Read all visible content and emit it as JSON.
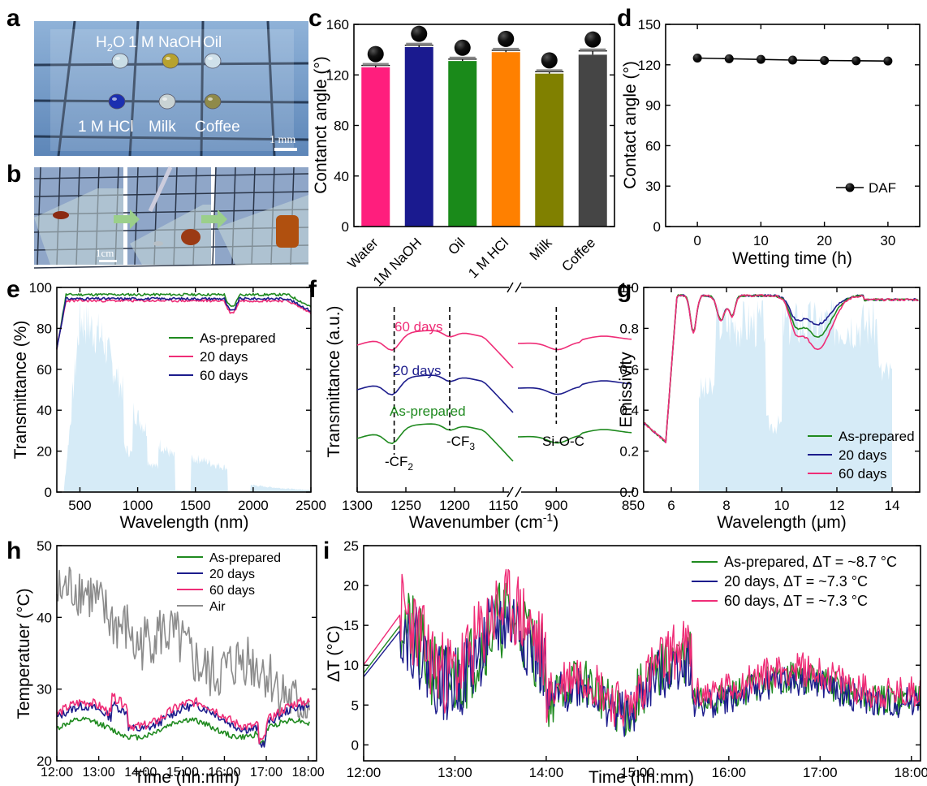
{
  "panel_labels": [
    "a",
    "b",
    "c",
    "d",
    "e",
    "f",
    "g",
    "h",
    "i"
  ],
  "photo_a": {
    "labels": [
      {
        "k": "H",
        "sub": "2",
        "rest": "O"
      },
      {
        "k": "1 M NaOH"
      },
      {
        "k": "Oil"
      },
      {
        "k": "1 M HCl"
      },
      {
        "k": "Milk"
      },
      {
        "k": "Coffee"
      }
    ],
    "drop_colors": [
      "#c9dde6",
      "#b7a22e",
      "#cfe0ea",
      "#1b2fb0",
      "#c9d3d4",
      "#8f8a4a"
    ],
    "scale": "1 mm"
  },
  "photo_b": {
    "scale": "1cm"
  },
  "colors": {
    "green": "#1f8a1f",
    "navy": "#1c1c8c",
    "pink": "#ef2d77",
    "gray": "#8c8c8c",
    "solar": "#d6ebf7"
  },
  "chart_data": [
    {
      "panel": "c",
      "type": "bar",
      "ylabel": "Contanct angle (°)",
      "ylim": [
        0,
        160
      ],
      "categories": [
        "Water",
        "1M NaOH",
        "Oil",
        "1 M HCl",
        "Milk",
        "Coffee"
      ],
      "values": [
        126,
        142,
        131,
        138,
        121,
        136
      ],
      "errors": [
        1.5,
        1.5,
        1.5,
        1.5,
        1.5,
        3
      ],
      "bar_colors": [
        "#ff1e7d",
        "#1a1a8f",
        "#1a8a1a",
        "#ff8000",
        "#808000",
        "#454545"
      ]
    },
    {
      "panel": "d",
      "type": "line",
      "xlabel": "Wetting time (h)",
      "ylabel": "Contact angle (°)",
      "xlim": [
        -5,
        35
      ],
      "ylim": [
        0,
        150
      ],
      "series": [
        {
          "name": "DAF",
          "x": [
            0,
            5,
            10,
            15,
            20,
            25,
            30
          ],
          "y": [
            125,
            124.5,
            124,
            123.5,
            123.2,
            123,
            122.8
          ]
        }
      ]
    },
    {
      "panel": "e",
      "type": "line",
      "xlabel": "Wavelength (nm)",
      "ylabel": "Transmittance (%)",
      "xlim": [
        300,
        2500
      ],
      "ylim": [
        0,
        100
      ],
      "legend": [
        "As-prepared",
        "20 days",
        "60 days"
      ]
    },
    {
      "panel": "f",
      "type": "line",
      "xlabel": "Wavenumber (cm",
      "ylabel": "Transmittance (a.u.)",
      "xticks": [
        "1300",
        "1250",
        "1200",
        "1150",
        "900",
        "850"
      ],
      "labels": [
        "60 days",
        "20 days",
        "As-prepared"
      ],
      "annotations": [
        "-CF",
        "-CF",
        "Si-O-C"
      ]
    },
    {
      "panel": "g",
      "type": "line",
      "xlabel": "Wavelength (μm)",
      "ylabel": "Emissivity",
      "xlim": [
        5,
        15
      ],
      "ylim": [
        0,
        1
      ],
      "legend": [
        "As-prepared",
        "20 days",
        "60 days"
      ]
    },
    {
      "panel": "h",
      "type": "line",
      "xlabel": "Time (hh:mm)",
      "ylabel": "Temperatuer (°C)",
      "ylim": [
        20,
        50
      ],
      "xticks": [
        "12:00",
        "13:00",
        "14:00",
        "15:00",
        "16:00",
        "17:00",
        "18:00"
      ],
      "legend": [
        "As-prepared",
        "20 days",
        "60 days",
        "Air"
      ]
    },
    {
      "panel": "i",
      "type": "line",
      "xlabel": "Time (hh:mm)",
      "ylabel": "ΔT (°C)",
      "ylim": [
        -2,
        25
      ],
      "xticks": [
        "12:00",
        "13:00",
        "14:00",
        "15:00",
        "16:00",
        "17:00",
        "18:00"
      ],
      "legend": [
        "As-prepared, ΔT = ~8.7 °C",
        "20 days, ΔT = ~7.3 °C",
        "60 days, ΔT = ~7.3 °C"
      ]
    }
  ]
}
